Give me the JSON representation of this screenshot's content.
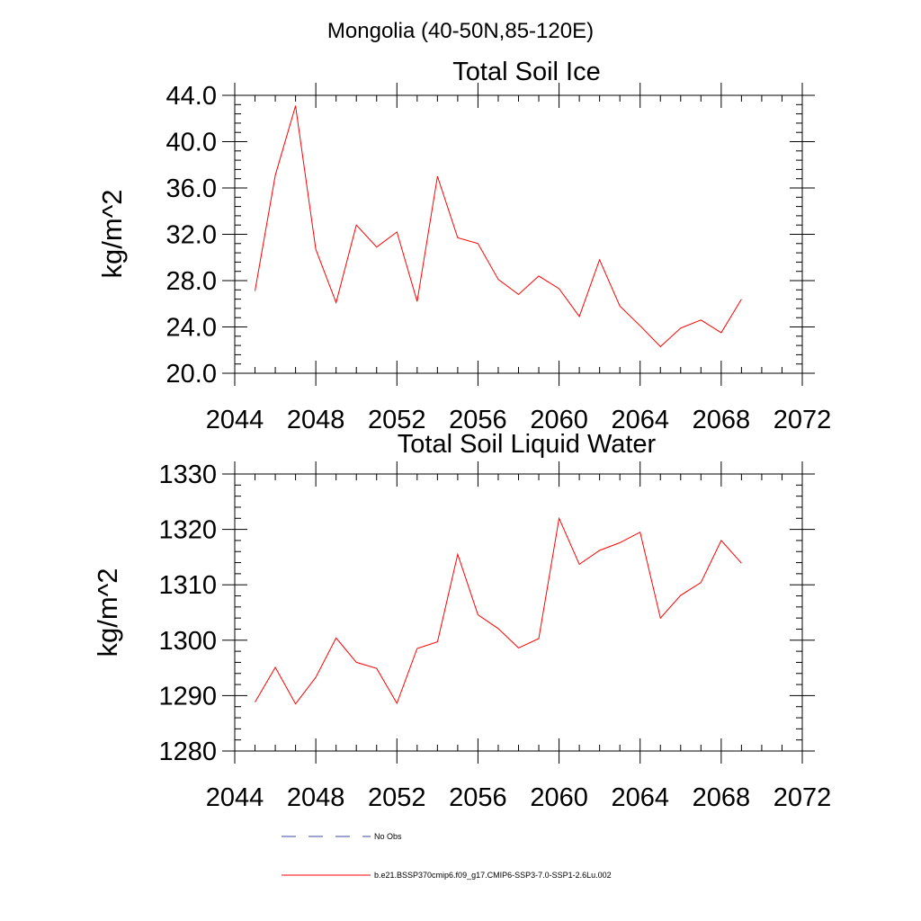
{
  "figure": {
    "title": "Mongolia (40-50N,85-120E)"
  },
  "chart_data": [
    {
      "type": "line",
      "title": "Total Soil Ice",
      "xlabel": "",
      "ylabel": "kg/m^2",
      "xlim": [
        2044,
        2072
      ],
      "ylim": [
        20,
        44
      ],
      "x_ticks": [
        2044,
        2048,
        2052,
        2056,
        2060,
        2064,
        2068,
        2072
      ],
      "y_ticks": [
        "20.0",
        "24.0",
        "28.0",
        "32.0",
        "36.0",
        "40.0",
        "44.0"
      ],
      "grid": false,
      "series": [
        {
          "color": "#ff0000",
          "x": [
            2045,
            2046,
            2047,
            2048,
            2049,
            2050,
            2051,
            2052,
            2053,
            2054,
            2055,
            2056,
            2057,
            2058,
            2059,
            2060,
            2061,
            2062,
            2063,
            2064,
            2065,
            2066,
            2067,
            2068,
            2069
          ],
          "y": [
            27.1,
            37.1,
            43.1,
            30.7,
            26.1,
            32.8,
            30.9,
            32.2,
            26.2,
            37.0,
            31.7,
            31.2,
            28.1,
            26.8,
            28.4,
            27.3,
            24.9,
            29.8,
            25.8,
            24.1,
            22.3,
            23.9,
            24.6,
            23.5,
            26.4
          ]
        }
      ]
    },
    {
      "type": "line",
      "title": "Total Soil Liquid Water",
      "xlabel": "",
      "ylabel": "kg/m^2",
      "xlim": [
        2044,
        2072
      ],
      "ylim": [
        1280,
        1330
      ],
      "x_ticks": [
        2044,
        2048,
        2052,
        2056,
        2060,
        2064,
        2068,
        2072
      ],
      "y_ticks": [
        "1280",
        "1290",
        "1300",
        "1310",
        "1320",
        "1330"
      ],
      "grid": false,
      "series": [
        {
          "color": "#ff0000",
          "x": [
            2045,
            2046,
            2047,
            2048,
            2049,
            2050,
            2051,
            2052,
            2053,
            2054,
            2055,
            2056,
            2057,
            2058,
            2059,
            2060,
            2061,
            2062,
            2063,
            2064,
            2065,
            2066,
            2067,
            2068,
            2069
          ],
          "y": [
            1288.8,
            1295.1,
            1288.5,
            1293.3,
            1300.4,
            1296.0,
            1294.9,
            1288.6,
            1298.5,
            1299.7,
            1315.5,
            1304.6,
            1302.1,
            1298.6,
            1300.3,
            1322.0,
            1313.7,
            1316.2,
            1317.6,
            1319.5,
            1304.0,
            1308.1,
            1310.4,
            1318.0,
            1313.9
          ]
        }
      ]
    }
  ],
  "legend": {
    "entries": [
      {
        "label": "No Obs",
        "color": "#3a4a9a",
        "style": "dashed"
      },
      {
        "label": "b.e21.BSSP370cmip6.f09_g17.CMIP6-SSP3-7.0-SSP1-2.6Lu.002",
        "color": "#ff0000",
        "style": "solid"
      }
    ]
  }
}
